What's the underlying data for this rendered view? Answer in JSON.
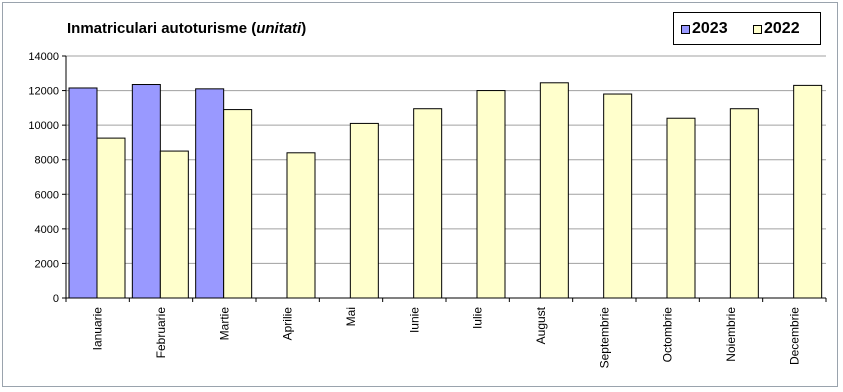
{
  "chart_data": {
    "type": "bar",
    "title": "Inmatriculari autoturisme (",
    "title_italic": "unitati",
    "title_suffix": ")",
    "categories": [
      "Ianuarie",
      "Februarie",
      "Martie",
      "Aprilie",
      "Mai",
      "Iunie",
      "Iulie",
      "August",
      "Septembrie",
      "Octombrie",
      "Noiembrie",
      "Decembrie"
    ],
    "series": [
      {
        "name": "2023",
        "color": "#9999ff",
        "values": [
          12150,
          12350,
          12100,
          null,
          null,
          null,
          null,
          null,
          null,
          null,
          null,
          null
        ]
      },
      {
        "name": "2022",
        "color": "#ffffcc",
        "values": [
          9250,
          8500,
          10900,
          8400,
          10100,
          10950,
          12000,
          12450,
          11800,
          10400,
          10950,
          12300
        ]
      }
    ],
    "ylim": [
      0,
      14000
    ],
    "yticks": [
      "0",
      "2000",
      "4000",
      "6000",
      "8000",
      "10000",
      "12000",
      "14000"
    ],
    "grid": true,
    "legend_position": "top-right",
    "xlabel": "",
    "ylabel": ""
  }
}
